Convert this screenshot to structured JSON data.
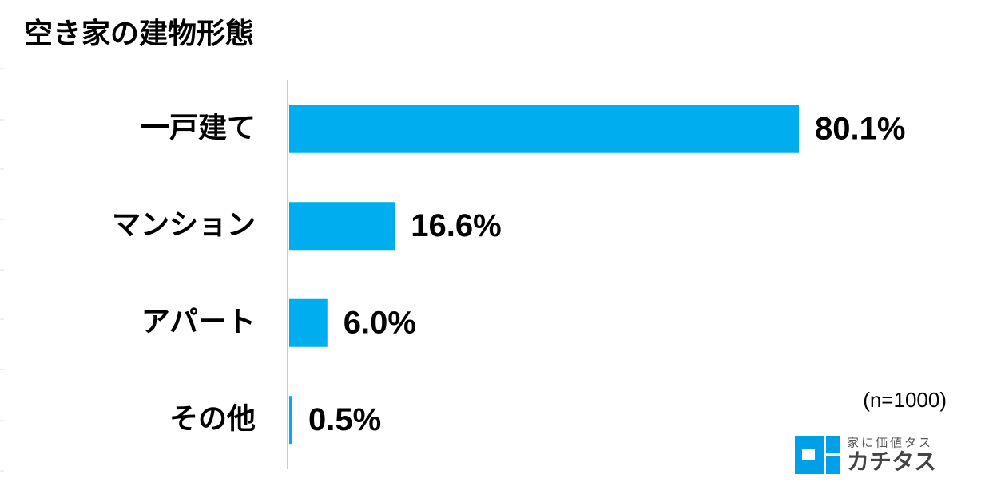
{
  "chart_data": {
    "type": "hbar",
    "title": "空き家の建物形態",
    "categories": [
      "一戸建て",
      "マンション",
      "アパート",
      "その他"
    ],
    "values": [
      80.1,
      16.6,
      6.0,
      0.5
    ],
    "value_labels": [
      "80.1%",
      "16.6%",
      "6.0%",
      "0.5%"
    ],
    "color": "#00aeef",
    "xlim": [
      0,
      100
    ],
    "annotation": "(n=1000)"
  },
  "logo": {
    "tagline": "家に価値タス",
    "name": "カチタス"
  }
}
